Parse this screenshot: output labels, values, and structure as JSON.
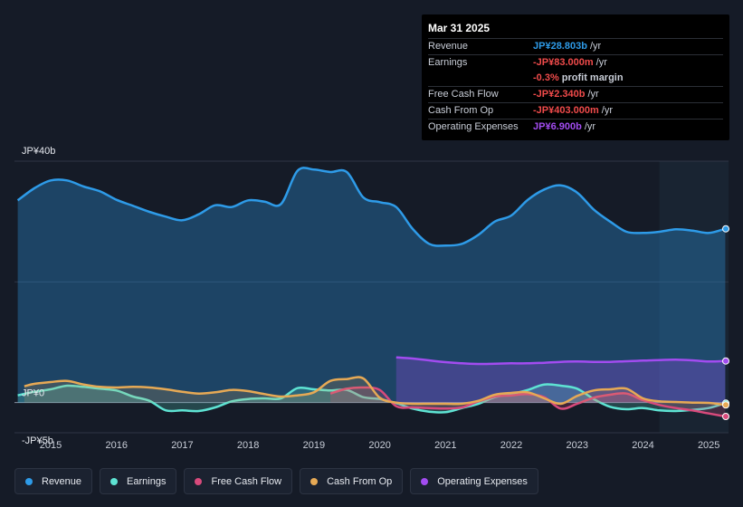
{
  "tooltip": {
    "date": "Mar 31 2025",
    "rows": [
      {
        "name": "Revenue",
        "value": "JP¥28.803b",
        "unit": "/yr",
        "color": "#2e9be8"
      },
      {
        "name": "Earnings",
        "value": "-JP¥83.000m",
        "unit": "/yr",
        "color": "#f04b4b"
      },
      {
        "name": "",
        "value": "-0.3%",
        "unit": "profit margin",
        "color": "#f04b4b"
      },
      {
        "name": "Free Cash Flow",
        "value": "-JP¥2.340b",
        "unit": "/yr",
        "color": "#f04b4b"
      },
      {
        "name": "Cash From Op",
        "value": "-JP¥403.000m",
        "unit": "/yr",
        "color": "#f04b4b"
      },
      {
        "name": "Operating Expenses",
        "value": "JP¥6.900b",
        "unit": "/yr",
        "color": "#a24cf0"
      }
    ]
  },
  "legend": [
    {
      "label": "Revenue",
      "color": "#2e9be8"
    },
    {
      "label": "Earnings",
      "color": "#5ee3d3"
    },
    {
      "label": "Free Cash Flow",
      "color": "#d84a7c"
    },
    {
      "label": "Cash From Op",
      "color": "#e6a955"
    },
    {
      "label": "Operating Expenses",
      "color": "#a24cf0"
    }
  ],
  "chart_data": {
    "type": "area",
    "title": "",
    "ylim": [
      -5,
      40
    ],
    "y_ticks": [
      {
        "value": 40,
        "label": "JP¥40b"
      },
      {
        "value": 0,
        "label": "JP¥0"
      },
      {
        "value": -5,
        "label": "-JP¥5b"
      }
    ],
    "xlim": [
      2014.45,
      2025.3
    ],
    "x_ticks": [
      "2015",
      "2016",
      "2017",
      "2018",
      "2019",
      "2020",
      "2021",
      "2022",
      "2023",
      "2024",
      "2025"
    ],
    "forecast_shade_from": 2024.25,
    "series": [
      {
        "name": "Revenue",
        "color": "#2e9be8",
        "fill": true,
        "x": [
          2014.5,
          2014.75,
          2015.0,
          2015.25,
          2015.5,
          2015.75,
          2016.0,
          2016.25,
          2016.5,
          2016.75,
          2017.0,
          2017.25,
          2017.5,
          2017.75,
          2018.0,
          2018.25,
          2018.5,
          2018.75,
          2019.0,
          2019.25,
          2019.5,
          2019.75,
          2020.0,
          2020.25,
          2020.5,
          2020.75,
          2021.0,
          2021.25,
          2021.5,
          2021.75,
          2022.0,
          2022.25,
          2022.5,
          2022.75,
          2023.0,
          2023.25,
          2023.5,
          2023.75,
          2024.0,
          2024.25,
          2024.5,
          2024.75,
          2025.0,
          2025.25
        ],
        "values": [
          33.5,
          35.5,
          36.8,
          36.8,
          35.8,
          35.0,
          33.6,
          32.6,
          31.6,
          30.8,
          30.2,
          31.2,
          32.7,
          32.4,
          33.5,
          33.3,
          32.9,
          38.4,
          38.6,
          38.2,
          38.2,
          34.0,
          33.2,
          32.4,
          28.8,
          26.3,
          26.0,
          26.3,
          27.8,
          30.0,
          31.0,
          33.6,
          35.3,
          36.0,
          34.8,
          32.0,
          30.0,
          28.3,
          28.1,
          28.3,
          28.7,
          28.5,
          28.1,
          28.8
        ]
      },
      {
        "name": "Operating Expenses",
        "color": "#a24cf0",
        "fill": true,
        "x": [
          2020.25,
          2020.5,
          2020.75,
          2021.0,
          2021.25,
          2021.5,
          2021.75,
          2022.0,
          2022.25,
          2022.5,
          2022.75,
          2023.0,
          2023.25,
          2023.5,
          2023.75,
          2024.0,
          2024.25,
          2024.5,
          2024.75,
          2025.0,
          2025.25
        ],
        "values": [
          7.5,
          7.3,
          7.0,
          6.7,
          6.5,
          6.4,
          6.45,
          6.5,
          6.5,
          6.6,
          6.75,
          6.8,
          6.75,
          6.75,
          6.85,
          6.95,
          7.05,
          7.1,
          7.0,
          6.8,
          6.9
        ]
      },
      {
        "name": "Earnings",
        "color": "#5ee3d3",
        "fill": true,
        "x": [
          2014.5,
          2014.75,
          2015.0,
          2015.25,
          2015.5,
          2015.75,
          2016.0,
          2016.25,
          2016.5,
          2016.75,
          2017.0,
          2017.25,
          2017.5,
          2017.75,
          2018.0,
          2018.25,
          2018.5,
          2018.75,
          2019.0,
          2019.25,
          2019.5,
          2019.75,
          2020.0,
          2020.25,
          2020.5,
          2020.75,
          2021.0,
          2021.25,
          2021.5,
          2021.75,
          2022.0,
          2022.25,
          2022.5,
          2022.75,
          2023.0,
          2023.25,
          2023.5,
          2023.75,
          2024.0,
          2024.25,
          2024.5,
          2024.75,
          2025.0,
          2025.25
        ],
        "values": [
          1.2,
          1.8,
          2.2,
          2.8,
          2.6,
          2.3,
          2.0,
          1.0,
          0.3,
          -1.3,
          -1.3,
          -1.4,
          -0.8,
          0.2,
          0.6,
          0.7,
          0.7,
          2.4,
          2.2,
          2.0,
          2.1,
          0.9,
          0.6,
          -0.1,
          -1.0,
          -1.5,
          -1.6,
          -0.9,
          -0.2,
          0.9,
          1.4,
          2.1,
          3.0,
          2.8,
          2.3,
          0.6,
          -0.7,
          -1.1,
          -0.9,
          -1.3,
          -1.4,
          -1.2,
          -0.9,
          -0.1
        ]
      },
      {
        "name": "Free Cash Flow",
        "color": "#d84a7c",
        "fill": true,
        "x": [
          2019.25,
          2019.5,
          2019.75,
          2020.0,
          2020.25,
          2020.5,
          2020.75,
          2021.0,
          2021.25,
          2021.5,
          2021.75,
          2022.0,
          2022.25,
          2022.5,
          2022.75,
          2023.0,
          2023.25,
          2023.5,
          2023.75,
          2024.0,
          2024.25,
          2024.5,
          2024.75,
          2025.0,
          2025.25
        ],
        "values": [
          1.5,
          2.3,
          2.5,
          2.1,
          -0.6,
          -0.8,
          -0.9,
          -1.0,
          -0.8,
          0.2,
          1.0,
          1.2,
          1.4,
          0.9,
          -1.0,
          -0.2,
          0.8,
          1.3,
          1.5,
          0.4,
          -0.4,
          -0.9,
          -1.3,
          -1.8,
          -2.3
        ]
      },
      {
        "name": "Cash From Op",
        "color": "#e6a955",
        "fill": true,
        "x": [
          2014.6,
          2014.75,
          2015.0,
          2015.25,
          2015.5,
          2015.75,
          2016.0,
          2016.25,
          2016.5,
          2016.75,
          2017.0,
          2017.25,
          2017.5,
          2017.75,
          2018.0,
          2018.25,
          2018.5,
          2018.75,
          2019.0,
          2019.25,
          2019.5,
          2019.75,
          2020.0,
          2020.25,
          2020.5,
          2020.75,
          2021.0,
          2021.25,
          2021.5,
          2021.75,
          2022.0,
          2022.25,
          2022.5,
          2022.75,
          2023.0,
          2023.25,
          2023.5,
          2023.75,
          2024.0,
          2024.25,
          2024.5,
          2024.75,
          2025.0,
          2025.25
        ],
        "values": [
          2.7,
          3.1,
          3.4,
          3.6,
          3.0,
          2.6,
          2.5,
          2.6,
          2.5,
          2.2,
          1.8,
          1.5,
          1.7,
          2.1,
          1.9,
          1.4,
          1.0,
          1.2,
          1.7,
          3.6,
          3.9,
          4.0,
          0.8,
          0.0,
          -0.2,
          -0.2,
          -0.2,
          -0.2,
          0.3,
          1.3,
          1.6,
          1.7,
          0.7,
          -0.2,
          1.1,
          2.0,
          2.2,
          2.3,
          0.7,
          0.2,
          0.1,
          0.0,
          -0.05,
          -0.4
        ]
      }
    ]
  }
}
